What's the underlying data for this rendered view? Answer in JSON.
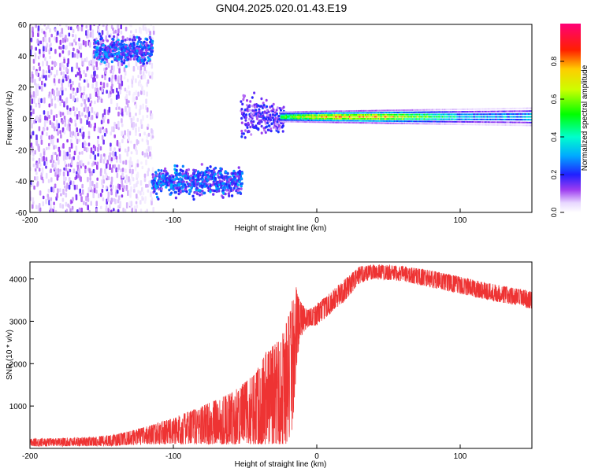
{
  "title": "GN04.2025.020.01.43.E19",
  "chart_data": [
    {
      "type": "heatmap",
      "xlabel": "Height of straight line (km)",
      "ylabel": "Frequency (Hz)",
      "xlim": [
        -200,
        150
      ],
      "ylim": [
        -60,
        60
      ],
      "xticks": [
        "-200",
        "-100",
        "0",
        "100"
      ],
      "xtick_values": [
        -200,
        -100,
        0,
        100
      ],
      "yticks": [
        "-60",
        "-40",
        "-20",
        "0",
        "20",
        "40",
        "60"
      ],
      "ytick_values": [
        -60,
        -40,
        -20,
        0,
        20,
        40,
        60
      ],
      "colorbar": {
        "label": "Normalized spectral amplitude",
        "range": [
          0,
          1
        ],
        "ticks": [
          "0.0",
          "0.2",
          "0.4",
          "0.6",
          "0.8"
        ],
        "tick_values": [
          0.0,
          0.2,
          0.4,
          0.6,
          0.8
        ],
        "colormap": "rainbow (white-violet-blue-cyan-green-yellow-red-magenta)"
      },
      "features": [
        {
          "x_range": [
            -200,
            -115
          ],
          "freq_range": [
            -60,
            60
          ],
          "amplitude": 0.05,
          "form": "broadband noise"
        },
        {
          "x_range": [
            -155,
            -115
          ],
          "freq_center": 43,
          "amplitude": 0.2,
          "form": "band"
        },
        {
          "x_range": [
            -115,
            -52
          ],
          "freq_center": -40,
          "amplitude": 0.2,
          "form": "band"
        },
        {
          "x_range": [
            -53,
            -23
          ],
          "freq_center": 0,
          "amplitude": 0.15,
          "form": "onset"
        },
        {
          "x_range": [
            -25,
            150
          ],
          "freq_center": 1,
          "amplitude": 0.7,
          "form": "line"
        }
      ]
    },
    {
      "type": "line",
      "xlabel": "Height of straight line (km)",
      "ylabel": "SNR (10 * v/v)",
      "xlim": [
        -200,
        150
      ],
      "ylim": [
        0,
        4400
      ],
      "xticks": [
        "-200",
        "-100",
        "0",
        "100"
      ],
      "xtick_values": [
        -200,
        -100,
        0,
        100
      ],
      "yticks": [
        "1000",
        "2000",
        "3000",
        "4000"
      ],
      "ytick_values": [
        1000,
        2000,
        3000,
        4000
      ],
      "color": "#ee3333",
      "envelope": {
        "x": [
          -200,
          -180,
          -160,
          -140,
          -120,
          -100,
          -80,
          -60,
          -45,
          -35,
          -25,
          -18,
          -15,
          -12,
          -8,
          -5,
          0,
          10,
          20,
          30,
          40,
          60,
          80,
          100,
          120,
          150
        ],
        "lower": [
          50,
          50,
          60,
          60,
          100,
          100,
          100,
          100,
          100,
          100,
          100,
          100,
          1400,
          2600,
          2800,
          2900,
          2900,
          3200,
          3500,
          3900,
          4000,
          3950,
          3800,
          3650,
          3500,
          3300
        ],
        "upper": [
          230,
          240,
          260,
          330,
          500,
          720,
          1000,
          1300,
          1700,
          2300,
          2600,
          3300,
          3900,
          3500,
          3300,
          3300,
          3400,
          3700,
          4000,
          4300,
          4350,
          4300,
          4200,
          4050,
          3900,
          3700
        ]
      }
    }
  ]
}
